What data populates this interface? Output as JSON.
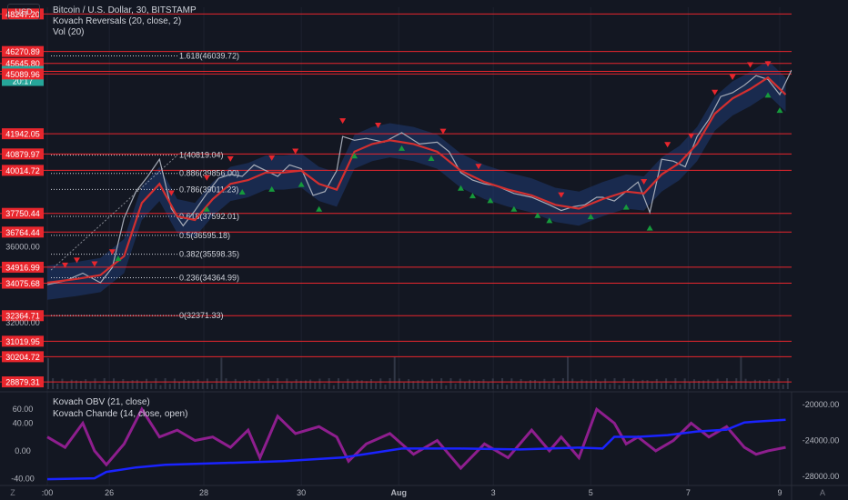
{
  "header": {
    "currency_label": "USD",
    "title": "Bitcoin / U.S. Dollar, 30, BITSTAMP",
    "indicators": [
      "Kovach Reversals (20, close, 2)",
      "Vol (20)"
    ],
    "lower_indicators": [
      "Kovach OBV (21, close)",
      "Kovach Chande (14, close, open)"
    ]
  },
  "colors": {
    "background": "#131722",
    "level_line": "#e8262d",
    "fast_line": "#d32f2f",
    "band_fill": "#1f3a72",
    "obv_line": "#1a23ff",
    "chande_line": "#8e1e8e",
    "up_marker": "#169a3c",
    "down_marker": "#e8262d"
  },
  "chart_data": {
    "type": "line",
    "price_axis": {
      "min": 28500,
      "max": 48600,
      "ticks": [
        36000,
        32000
      ],
      "tick_labels": [
        "36000.00",
        "32000.00"
      ]
    },
    "horizontal_levels": [
      {
        "value": 48247.2,
        "label": "48247.20"
      },
      {
        "value": 46270.89,
        "label": "46270.89"
      },
      {
        "value": 45645.8,
        "label": "45645.80"
      },
      {
        "value": 45225.22,
        "label": "45225.22",
        "sublabel": "20:17",
        "current": true
      },
      {
        "value": 45089.96,
        "label": "45089.96"
      },
      {
        "value": 41942.05,
        "label": "41942.05"
      },
      {
        "value": 40879.97,
        "label": "40879.97"
      },
      {
        "value": 40014.72,
        "label": "40014.72"
      },
      {
        "value": 37750.44,
        "label": "37750.44"
      },
      {
        "value": 36764.44,
        "label": "36764.44"
      },
      {
        "value": 34916.99,
        "label": "34916.99"
      },
      {
        "value": 34075.68,
        "label": "34075.68"
      },
      {
        "value": 32364.71,
        "label": "32364.71"
      },
      {
        "value": 31019.95,
        "label": "31019.95"
      },
      {
        "value": 30204.72,
        "label": "30204.72"
      },
      {
        "value": 28879.31,
        "label": "28879.31"
      }
    ],
    "fibonacci": [
      {
        "ratio": "1.618",
        "value": 46039.72,
        "label": "1.618(46039.72)"
      },
      {
        "ratio": "1",
        "value": 40819.04,
        "label": "1(40819.04)"
      },
      {
        "ratio": "0.886",
        "value": 39856.0,
        "label": "0.886(39856.00)"
      },
      {
        "ratio": "0.786",
        "value": 39011.23,
        "label": "0.786(39011.23)"
      },
      {
        "ratio": "0.618",
        "value": 37592.01,
        "label": "0.618(37592.01)"
      },
      {
        "ratio": "0.5",
        "value": 36595.18,
        "label": "0.5(36595.18)"
      },
      {
        "ratio": "0.382",
        "value": 35598.35,
        "label": "0.382(35598.35)"
      },
      {
        "ratio": "0.236",
        "value": 34364.99,
        "label": "0.236(34364.99)"
      },
      {
        "ratio": "0",
        "value": 32371.33,
        "label": "0(32371.33)"
      }
    ],
    "x_axis": {
      "labels": [
        ":00",
        "26",
        "28",
        "30",
        "Aug",
        "3",
        "5",
        "7",
        "9"
      ],
      "label_positions": [
        0,
        0.105,
        0.265,
        0.43,
        0.595,
        0.755,
        0.92,
        1.085,
        1.24
      ]
    },
    "price_series": {
      "t": [
        0,
        0.03,
        0.06,
        0.09,
        0.11,
        0.13,
        0.15,
        0.17,
        0.19,
        0.21,
        0.23,
        0.25,
        0.27,
        0.29,
        0.31,
        0.33,
        0.35,
        0.37,
        0.39,
        0.41,
        0.43,
        0.45,
        0.47,
        0.49,
        0.5,
        0.52,
        0.54,
        0.57,
        0.6,
        0.63,
        0.66,
        0.68,
        0.7,
        0.72,
        0.74,
        0.76,
        0.79,
        0.82,
        0.85,
        0.87,
        0.89,
        0.91,
        0.93,
        0.94,
        0.96,
        0.98,
        1.0,
        1.02,
        1.04,
        1.06,
        1.08,
        1.1,
        1.12,
        1.14,
        1.16,
        1.18,
        1.2,
        1.22,
        1.24,
        1.26
      ],
      "close": [
        34000,
        34200,
        34600,
        34100,
        34900,
        37500,
        38900,
        39700,
        40600,
        38000,
        37100,
        37900,
        38800,
        39600,
        39800,
        39700,
        40300,
        40000,
        39700,
        40300,
        40100,
        38700,
        38900,
        40000,
        41800,
        41600,
        41700,
        41500,
        42000,
        41400,
        41500,
        41000,
        39900,
        39500,
        39300,
        39200,
        38800,
        38600,
        38200,
        37900,
        38100,
        38200,
        38600,
        38600,
        38400,
        38900,
        39400,
        37800,
        40600,
        40500,
        40200,
        41800,
        42700,
        43900,
        44100,
        44500,
        45000,
        44800,
        44000,
        45300
      ]
    },
    "fast_line": {
      "t": [
        0,
        0.05,
        0.09,
        0.13,
        0.16,
        0.19,
        0.22,
        0.25,
        0.28,
        0.31,
        0.34,
        0.37,
        0.4,
        0.43,
        0.46,
        0.49,
        0.52,
        0.55,
        0.58,
        0.62,
        0.66,
        0.7,
        0.74,
        0.78,
        0.82,
        0.86,
        0.9,
        0.94,
        0.98,
        1.01,
        1.04,
        1.07,
        1.1,
        1.13,
        1.16,
        1.19,
        1.22,
        1.25
      ],
      "value": [
        34100,
        34300,
        34500,
        35500,
        38300,
        39300,
        37600,
        37400,
        38500,
        39300,
        39500,
        39900,
        39900,
        40000,
        39300,
        39000,
        41000,
        41400,
        41600,
        41400,
        41000,
        40000,
        39400,
        39000,
        38700,
        38200,
        38000,
        38500,
        38900,
        38800,
        39800,
        40400,
        41400,
        43000,
        43800,
        44300,
        44900,
        44000
      ]
    },
    "up_markers_t": [
      0.12,
      0.27,
      0.33,
      0.38,
      0.43,
      0.46,
      0.52,
      0.6,
      0.65,
      0.7,
      0.72,
      0.75,
      0.79,
      0.83,
      0.85,
      0.92,
      0.98,
      1.02,
      1.22,
      1.24
    ],
    "down_markers_t": [
      0.03,
      0.05,
      0.08,
      0.11,
      0.21,
      0.27,
      0.31,
      0.38,
      0.42,
      0.5,
      0.56,
      0.67,
      0.73,
      0.87,
      1.01,
      1.05,
      1.09,
      1.13,
      1.16,
      1.19,
      1.22
    ],
    "volume_axis": {
      "labels": []
    },
    "oscillator_axis": {
      "ticks": [
        60,
        40,
        0,
        -40
      ],
      "tick_labels": [
        "60.00",
        "40.00",
        "0.00",
        "-40.00"
      ]
    },
    "obv_axis": {
      "ticks": [
        -20000,
        -24000,
        -28000
      ],
      "tick_labels": [
        "-20000.00",
        "-24000.00",
        "-28000.00"
      ]
    },
    "obv_series": {
      "t": [
        0,
        0.08,
        0.1,
        0.15,
        0.2,
        0.3,
        0.4,
        0.5,
        0.55,
        0.6,
        0.7,
        0.8,
        0.9,
        0.94,
        0.96,
        1.0,
        1.05,
        1.1,
        1.15,
        1.18,
        1.2,
        1.25
      ],
      "value": [
        -28300,
        -28200,
        -27500,
        -27000,
        -26700,
        -26500,
        -26300,
        -25900,
        -25400,
        -24900,
        -24900,
        -25000,
        -24800,
        -24900,
        -23600,
        -23600,
        -23400,
        -23000,
        -22800,
        -22000,
        -21900,
        -21700
      ]
    },
    "chande_series": {
      "t": [
        0,
        0.03,
        0.06,
        0.08,
        0.1,
        0.13,
        0.16,
        0.19,
        0.22,
        0.25,
        0.28,
        0.31,
        0.34,
        0.36,
        0.39,
        0.42,
        0.46,
        0.49,
        0.51,
        0.54,
        0.58,
        0.62,
        0.66,
        0.7,
        0.74,
        0.78,
        0.82,
        0.85,
        0.87,
        0.9,
        0.93,
        0.96,
        0.98,
        1.0,
        1.03,
        1.06,
        1.09,
        1.12,
        1.15,
        1.18,
        1.2,
        1.22,
        1.25
      ],
      "value": [
        20,
        5,
        40,
        0,
        -20,
        10,
        60,
        20,
        30,
        15,
        20,
        5,
        30,
        -10,
        50,
        25,
        35,
        20,
        -15,
        10,
        25,
        -5,
        15,
        -25,
        10,
        -10,
        30,
        0,
        20,
        -10,
        60,
        40,
        10,
        20,
        0,
        15,
        40,
        20,
        35,
        5,
        -5,
        0,
        5
      ]
    }
  }
}
